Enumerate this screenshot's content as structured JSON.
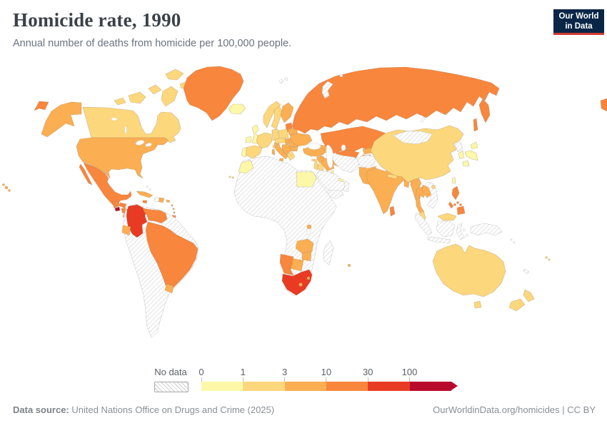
{
  "header": {
    "title": "Homicide rate, 1990",
    "subtitle": "Annual number of deaths from homicide per 100,000 people."
  },
  "logo": {
    "line1": "Our World",
    "line2": "in Data",
    "bg_color": "#0a2647",
    "accent_color": "#d03a34"
  },
  "legend": {
    "no_data_label": "No data",
    "ticks": [
      "0",
      "1",
      "3",
      "10",
      "30",
      "100"
    ],
    "segments": [
      {
        "range": "0-1",
        "color": "#fcf8a8"
      },
      {
        "range": "1-3",
        "color": "#fdd77c"
      },
      {
        "range": "3-10",
        "color": "#fbae52"
      },
      {
        "range": "10-30",
        "color": "#f8863d"
      },
      {
        "range": "30-100",
        "color": "#e93b23"
      },
      {
        "range": "100+",
        "color": "#b90b2c"
      }
    ]
  },
  "footer": {
    "datasource_label": "Data source:",
    "datasource_text": " United Nations Office on Drugs and Crime (2025)",
    "link_text": "OurWorldinData.org/homicides | CC BY"
  },
  "map": {
    "no_data_hatch_color": "#cccccc",
    "palette": {
      "c0": "#fcf8a8",
      "c1": "#fdd77c",
      "c2": "#fbae52",
      "c3": "#f8863d",
      "c4": "#e93b23",
      "c5": "#b90b2c"
    },
    "regions": [
      {
        "id": "alaska",
        "label": "United States (Alaska)",
        "category": "c2"
      },
      {
        "id": "chukotka-west",
        "label": "Russia (Chukotka, west wrap)",
        "category": "c3"
      },
      {
        "id": "canada",
        "label": "Canada",
        "category": "c1"
      },
      {
        "id": "canada-arctic-islands",
        "label": "Canada (Arctic islands)",
        "category": "c1"
      },
      {
        "id": "greenland",
        "label": "Greenland",
        "category": "c3"
      },
      {
        "id": "usa",
        "label": "United States",
        "category": "c2"
      },
      {
        "id": "hawaii",
        "label": "United States (Hawaii)",
        "category": "c2"
      },
      {
        "id": "mexico",
        "label": "Mexico",
        "category": "c3"
      },
      {
        "id": "guatemala",
        "label": "Guatemala",
        "category": "c3"
      },
      {
        "id": "el-salvador",
        "label": "El Salvador",
        "category": "c5"
      },
      {
        "id": "honduras",
        "label": "Honduras",
        "category": "c3"
      },
      {
        "id": "nicaragua",
        "label": "Nicaragua",
        "category": "c3"
      },
      {
        "id": "costa-rica",
        "label": "Costa Rica",
        "category": "c2"
      },
      {
        "id": "panama",
        "label": "Panama",
        "category": "c2"
      },
      {
        "id": "cuba",
        "label": "Cuba",
        "category": "c2"
      },
      {
        "id": "jamaica",
        "label": "Jamaica",
        "category": "c3"
      },
      {
        "id": "haiti",
        "label": "Haiti",
        "category": "no_data"
      },
      {
        "id": "dominican-republic",
        "label": "Dominican Republic",
        "category": "c2"
      },
      {
        "id": "puerto-rico",
        "label": "Puerto Rico",
        "category": "c2"
      },
      {
        "id": "lesser-antilles",
        "label": "Lesser Antilles",
        "category": "c2"
      },
      {
        "id": "trinidad-and-tobago",
        "label": "Trinidad and Tobago",
        "category": "c3"
      },
      {
        "id": "bahamas",
        "label": "Bahamas",
        "category": "no_data"
      },
      {
        "id": "south-america-no-data",
        "label": "Peru, Bolivia, Paraguay, Chile, Argentina, Guyana, Suriname",
        "category": "no_data"
      },
      {
        "id": "colombia",
        "label": "Colombia",
        "category": "c4"
      },
      {
        "id": "venezuela",
        "label": "Venezuela",
        "category": "c3"
      },
      {
        "id": "ecuador",
        "label": "Ecuador",
        "category": "c2"
      },
      {
        "id": "brazil",
        "label": "Brazil",
        "category": "c3"
      },
      {
        "id": "uruguay",
        "label": "Uruguay",
        "category": "c2"
      },
      {
        "id": "iceland",
        "label": "Iceland",
        "category": "c0"
      },
      {
        "id": "united-kingdom",
        "label": "United Kingdom",
        "category": "c0"
      },
      {
        "id": "ireland",
        "label": "Ireland",
        "category": "c0"
      },
      {
        "id": "norway",
        "label": "Norway",
        "category": "c1"
      },
      {
        "id": "sweden",
        "label": "Sweden",
        "category": "c1"
      },
      {
        "id": "finland",
        "label": "Finland",
        "category": "c2"
      },
      {
        "id": "denmark",
        "label": "Denmark",
        "category": "c0"
      },
      {
        "id": "baltic-states",
        "label": "Baltic states",
        "category": "c3"
      },
      {
        "id": "belarus",
        "label": "Belarus",
        "category": "c2"
      },
      {
        "id": "poland",
        "label": "Poland",
        "category": "c1"
      },
      {
        "id": "germany",
        "label": "Germany",
        "category": "c1"
      },
      {
        "id": "france",
        "label": "France",
        "category": "c1"
      },
      {
        "id": "spain",
        "label": "Spain",
        "category": "c1"
      },
      {
        "id": "portugal",
        "label": "Portugal",
        "category": "c0"
      },
      {
        "id": "canary-islands",
        "label": "Canary Islands",
        "category": "c1"
      },
      {
        "id": "italy",
        "label": "Italy",
        "category": "c2"
      },
      {
        "id": "central-europe",
        "label": "Switzerland, Austria, Czechia",
        "category": "c1"
      },
      {
        "id": "hungary-slovakia",
        "label": "Hungary, Slovakia",
        "category": "c2"
      },
      {
        "id": "western-balkans",
        "label": "Western Balkans",
        "category": "c2"
      },
      {
        "id": "greece",
        "label": "Greece",
        "category": "c1"
      },
      {
        "id": "romania",
        "label": "Romania",
        "category": "c2"
      },
      {
        "id": "bulgaria",
        "label": "Bulgaria",
        "category": "c2"
      },
      {
        "id": "ukraine",
        "label": "Ukraine",
        "category": "c2"
      },
      {
        "id": "russia",
        "label": "Russia",
        "category": "c3"
      },
      {
        "id": "chukotka-east",
        "label": "Russia (Chukotka, east)",
        "category": "c3"
      },
      {
        "id": "novaya-zemlya",
        "label": "Novaya Zemlya",
        "category": "no_data"
      },
      {
        "id": "svalbard",
        "label": "Svalbard",
        "category": "no_data"
      },
      {
        "id": "franz-josef-land",
        "label": "Franz Josef Land",
        "category": "no_data"
      },
      {
        "id": "kazakhstan",
        "label": "Kazakhstan",
        "category": "c3"
      },
      {
        "id": "uzbekistan",
        "label": "Uzbekistan",
        "category": "c3"
      },
      {
        "id": "turkmenistan",
        "label": "Turkmenistan",
        "category": "c2"
      },
      {
        "id": "kyrgyzstan",
        "label": "Kyrgyzstan",
        "category": "c2"
      },
      {
        "id": "tajikistan",
        "label": "Tajikistan",
        "category": "c2"
      },
      {
        "id": "caucasus",
        "label": "Georgia, Armenia, Azerbaijan",
        "category": "c2"
      },
      {
        "id": "turkey",
        "label": "Turkey",
        "category": "c2"
      },
      {
        "id": "cyprus",
        "label": "Cyprus",
        "category": "c1"
      },
      {
        "id": "syria",
        "label": "Syria",
        "category": "c2"
      },
      {
        "id": "lebanon-israel",
        "label": "Lebanon, Israel",
        "category": "c1"
      },
      {
        "id": "jordan",
        "label": "Jordan",
        "category": "c1"
      },
      {
        "id": "iraq",
        "label": "Iraq",
        "category": "c2"
      },
      {
        "id": "saudi-arabia",
        "label": "Saudi Arabia",
        "category": "no_data"
      },
      {
        "id": "yemen",
        "label": "Yemen",
        "category": "no_data"
      },
      {
        "id": "oman",
        "label": "Oman",
        "category": "no_data"
      },
      {
        "id": "kuwait",
        "label": "Kuwait",
        "category": "c0"
      },
      {
        "id": "uae-qatar",
        "label": "UAE, Qatar",
        "category": "c0"
      },
      {
        "id": "iran",
        "label": "Iran",
        "category": "no_data"
      },
      {
        "id": "afghanistan",
        "label": "Afghanistan",
        "category": "no_data"
      },
      {
        "id": "pakistan",
        "label": "Pakistan",
        "category": "c2"
      },
      {
        "id": "india",
        "label": "India",
        "category": "c2"
      },
      {
        "id": "nepal",
        "label": "Nepal",
        "category": "c1"
      },
      {
        "id": "bangladesh",
        "label": "Bangladesh",
        "category": "c2"
      },
      {
        "id": "sri-lanka",
        "label": "Sri Lanka",
        "category": "c3"
      },
      {
        "id": "myanmar",
        "label": "Myanmar",
        "category": "c2"
      },
      {
        "id": "vietnam-cambodia",
        "label": "Vietnam, Cambodia",
        "category": "no_data"
      },
      {
        "id": "thailand",
        "label": "Thailand",
        "category": "c2"
      },
      {
        "id": "laos",
        "label": "Laos",
        "category": "c2"
      },
      {
        "id": "malaysia",
        "label": "Malaysia",
        "category": "c1"
      },
      {
        "id": "indonesia",
        "label": "Indonesia",
        "category": "no_data"
      },
      {
        "id": "papua-new-guinea",
        "label": "Papua New Guinea",
        "category": "no_data"
      },
      {
        "id": "philippines",
        "label": "Philippines",
        "category": "c3"
      },
      {
        "id": "china",
        "label": "China",
        "category": "c1"
      },
      {
        "id": "mongolia",
        "label": "Mongolia",
        "category": "no_data"
      },
      {
        "id": "north-korea",
        "label": "North Korea",
        "category": "no_data"
      },
      {
        "id": "south-korea",
        "label": "South Korea",
        "category": "c0"
      },
      {
        "id": "japan",
        "label": "Japan",
        "category": "c0"
      },
      {
        "id": "taiwan",
        "label": "Taiwan",
        "category": "c0"
      },
      {
        "id": "hainan",
        "label": "China (Hainan)",
        "category": "c1"
      },
      {
        "id": "africa-no-data",
        "label": "Africa (countries without data)",
        "category": "no_data"
      },
      {
        "id": "morocco",
        "label": "Morocco",
        "category": "c0"
      },
      {
        "id": "egypt",
        "label": "Egypt",
        "category": "c0"
      },
      {
        "id": "rwanda-burundi",
        "label": "Rwanda, Burundi",
        "category": "c2"
      },
      {
        "id": "zambia",
        "label": "Zambia",
        "category": "c2"
      },
      {
        "id": "zimbabwe",
        "label": "Zimbabwe",
        "category": "c2"
      },
      {
        "id": "botswana",
        "label": "Botswana",
        "category": "c2"
      },
      {
        "id": "namibia",
        "label": "Namibia",
        "category": "c3"
      },
      {
        "id": "south-africa",
        "label": "South Africa",
        "category": "c4"
      },
      {
        "id": "lesotho",
        "label": "Lesotho",
        "category": "c2"
      },
      {
        "id": "eswatini",
        "label": "Eswatini",
        "category": "c2"
      },
      {
        "id": "madagascar",
        "label": "Madagascar",
        "category": "no_data"
      },
      {
        "id": "mauritius",
        "label": "Mauritius",
        "category": "c2"
      },
      {
        "id": "australia",
        "label": "Australia",
        "category": "c1"
      },
      {
        "id": "new-zealand",
        "label": "New Zealand",
        "category": "c1"
      },
      {
        "id": "fiji",
        "label": "Fiji",
        "category": "c1"
      },
      {
        "id": "new-caledonia",
        "label": "New Caledonia",
        "category": "no_data"
      },
      {
        "id": "solomon-islands",
        "label": "Solomon Islands",
        "category": "no_data"
      }
    ]
  }
}
